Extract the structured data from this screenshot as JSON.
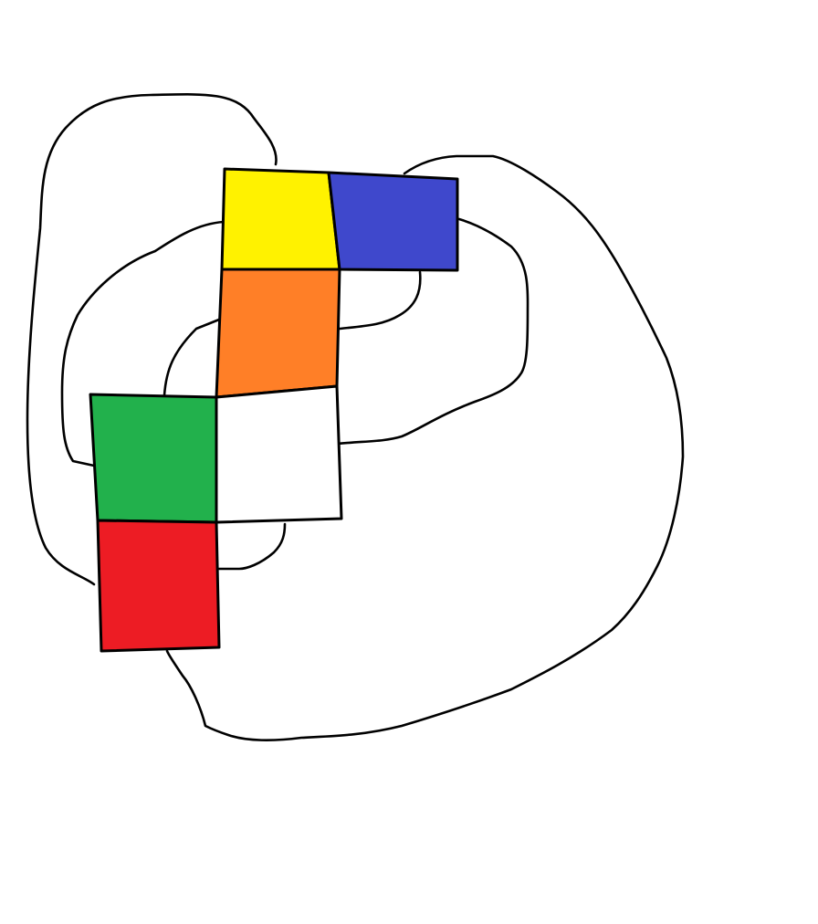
{
  "squares": [
    {
      "name": "yellow",
      "color": "#fff200"
    },
    {
      "name": "blue",
      "color": "#3f48cc"
    },
    {
      "name": "orange",
      "color": "#ff7f27"
    },
    {
      "name": "white",
      "color": "#ffffff"
    },
    {
      "name": "green",
      "color": "#22b14c"
    },
    {
      "name": "red",
      "color": "#ed1c24"
    }
  ]
}
